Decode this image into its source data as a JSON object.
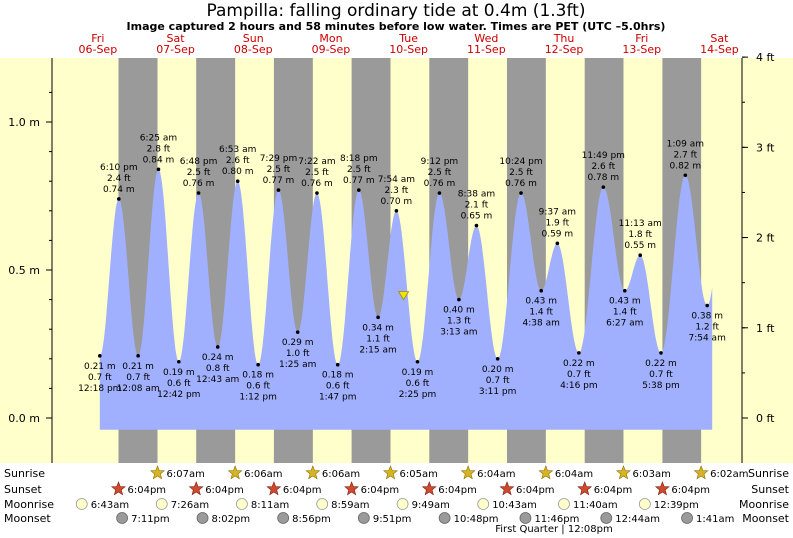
{
  "title": "Pampilla: falling  ordinary tide at 0.4m (1.3ft)",
  "subtitle": "Image captured 2 hours and 58 minutes before low water. Times are PET (UTC –5.0hrs)",
  "day_headers": [
    {
      "day": "Fri",
      "date": "06-Sep"
    },
    {
      "day": "Sat",
      "date": "07-Sep"
    },
    {
      "day": "Sun",
      "date": "08-Sep"
    },
    {
      "day": "Mon",
      "date": "09-Sep"
    },
    {
      "day": "Tue",
      "date": "10-Sep"
    },
    {
      "day": "Wed",
      "date": "11-Sep"
    },
    {
      "day": "Thu",
      "date": "12-Sep"
    },
    {
      "day": "Fri",
      "date": "13-Sep"
    },
    {
      "day": "Sat",
      "date": "14-Sep"
    }
  ],
  "chart_data": {
    "type": "area",
    "title": "Pampilla: falling  ordinary tide at 0.4m (1.3ft)",
    "ylabel_left_unit": "m",
    "ylabel_right_unit": "ft",
    "y_left_ticks": [
      "1.0 m",
      "0.5 m",
      "0.0 m"
    ],
    "y_right_ticks": [
      "4 ft",
      "3 ft",
      "2 ft",
      "1 ft",
      "0 ft"
    ],
    "ylim_m": [
      -0.04,
      1.2
    ],
    "series_color": "#a0b0ff",
    "night_color": "#9a9a9a",
    "day_color": "#ffffcc",
    "current_level_m": 0.4,
    "extremes": [
      {
        "day": 0,
        "time": "12:18 pm",
        "m": 0.21,
        "ft": 0.7,
        "type": "low"
      },
      {
        "day": 0,
        "time": "6:10 pm",
        "m": 0.74,
        "ft": 2.4,
        "type": "high"
      },
      {
        "day": 1,
        "time": "12:08 am",
        "m": 0.21,
        "ft": 0.7,
        "type": "low"
      },
      {
        "day": 1,
        "time": "6:25 am",
        "m": 0.84,
        "ft": 2.8,
        "type": "high"
      },
      {
        "day": 1,
        "time": "12:42 pm",
        "m": 0.19,
        "ft": 0.6,
        "type": "low"
      },
      {
        "day": 1,
        "time": "6:48 pm",
        "m": 0.76,
        "ft": 2.5,
        "type": "high"
      },
      {
        "day": 2,
        "time": "12:43 am",
        "m": 0.24,
        "ft": 0.8,
        "type": "low"
      },
      {
        "day": 2,
        "time": "6:53 am",
        "m": 0.8,
        "ft": 2.6,
        "type": "high"
      },
      {
        "day": 2,
        "time": "1:12 pm",
        "m": 0.18,
        "ft": 0.6,
        "type": "low"
      },
      {
        "day": 2,
        "time": "7:29 pm",
        "m": 0.77,
        "ft": 2.5,
        "type": "high"
      },
      {
        "day": 3,
        "time": "1:25 am",
        "m": 0.29,
        "ft": 1.0,
        "type": "low"
      },
      {
        "day": 3,
        "time": "7:22 am",
        "m": 0.76,
        "ft": 2.5,
        "type": "high"
      },
      {
        "day": 3,
        "time": "1:47 pm",
        "m": 0.18,
        "ft": 0.6,
        "type": "low"
      },
      {
        "day": 3,
        "time": "8:18 pm",
        "m": 0.77,
        "ft": 2.5,
        "type": "high"
      },
      {
        "day": 4,
        "time": "2:15 am",
        "m": 0.34,
        "ft": 1.1,
        "type": "low"
      },
      {
        "day": 4,
        "time": "7:54 am",
        "m": 0.7,
        "ft": 2.3,
        "type": "high"
      },
      {
        "day": 4,
        "time": "2:25 pm",
        "m": 0.19,
        "ft": 0.6,
        "type": "low"
      },
      {
        "day": 4,
        "time": "9:12 pm",
        "m": 0.76,
        "ft": 2.5,
        "type": "high"
      },
      {
        "day": 5,
        "time": "3:13 am",
        "m": 0.4,
        "ft": 1.3,
        "type": "low"
      },
      {
        "day": 5,
        "time": "8:38 am",
        "m": 0.65,
        "ft": 2.1,
        "type": "high"
      },
      {
        "day": 5,
        "time": "3:11 pm",
        "m": 0.2,
        "ft": 0.7,
        "type": "low"
      },
      {
        "day": 5,
        "time": "10:24 pm",
        "m": 0.76,
        "ft": 2.5,
        "type": "high"
      },
      {
        "day": 6,
        "time": "4:38 am",
        "m": 0.43,
        "ft": 1.4,
        "type": "low"
      },
      {
        "day": 6,
        "time": "9:37 am",
        "m": 0.59,
        "ft": 1.9,
        "type": "high"
      },
      {
        "day": 6,
        "time": "4:16 pm",
        "m": 0.22,
        "ft": 0.7,
        "type": "low"
      },
      {
        "day": 6,
        "time": "11:49 pm",
        "m": 0.78,
        "ft": 2.6,
        "type": "high"
      },
      {
        "day": 7,
        "time": "6:27 am",
        "m": 0.43,
        "ft": 1.4,
        "type": "low"
      },
      {
        "day": 7,
        "time": "11:13 am",
        "m": 0.55,
        "ft": 1.8,
        "type": "high"
      },
      {
        "day": 7,
        "time": "5:38 pm",
        "m": 0.22,
        "ft": 0.7,
        "type": "low"
      },
      {
        "day": 8,
        "time": "1:09 am",
        "m": 0.82,
        "ft": 2.7,
        "type": "high"
      },
      {
        "day": 8,
        "time": "7:54 am",
        "m": 0.38,
        "ft": 1.2,
        "type": "low"
      }
    ]
  },
  "astro_labels": {
    "sunrise": "Sunrise",
    "sunset": "Sunset",
    "moonrise": "Moonrise",
    "moonset": "Moonset"
  },
  "sunrise": [
    {
      "day": 1,
      "time": "6:07am"
    },
    {
      "day": 2,
      "time": "6:06am"
    },
    {
      "day": 3,
      "time": "6:06am"
    },
    {
      "day": 4,
      "time": "6:05am"
    },
    {
      "day": 5,
      "time": "6:04am"
    },
    {
      "day": 6,
      "time": "6:04am"
    },
    {
      "day": 7,
      "time": "6:03am"
    },
    {
      "day": 8,
      "time": "6:02am"
    }
  ],
  "sunset": [
    {
      "day": 0,
      "time": "6:04pm"
    },
    {
      "day": 1,
      "time": "6:04pm"
    },
    {
      "day": 2,
      "time": "6:04pm"
    },
    {
      "day": 3,
      "time": "6:04pm"
    },
    {
      "day": 4,
      "time": "6:04pm"
    },
    {
      "day": 5,
      "time": "6:04pm"
    },
    {
      "day": 6,
      "time": "6:04pm"
    },
    {
      "day": 7,
      "time": "6:04pm"
    }
  ],
  "moonrise": [
    {
      "day": 0,
      "time": "6:43am"
    },
    {
      "day": 1,
      "time": "7:26am"
    },
    {
      "day": 2,
      "time": "8:11am"
    },
    {
      "day": 3,
      "time": "8:59am"
    },
    {
      "day": 4,
      "time": "9:49am"
    },
    {
      "day": 5,
      "time": "10:43am"
    },
    {
      "day": 6,
      "time": "11:40am"
    },
    {
      "day": 7,
      "time": "12:39pm"
    }
  ],
  "moonset": [
    {
      "day": 0,
      "time": "7:11pm"
    },
    {
      "day": 1,
      "time": "8:02pm"
    },
    {
      "day": 2,
      "time": "8:56pm"
    },
    {
      "day": 3,
      "time": "9:51pm"
    },
    {
      "day": 4,
      "time": "10:48pm"
    },
    {
      "day": 5,
      "time": "11:46pm"
    },
    {
      "day": 7,
      "time": "12:44am"
    },
    {
      "day": 8,
      "time": "1:41am"
    }
  ],
  "moon_phase": "First Quarter | 12:08pm"
}
